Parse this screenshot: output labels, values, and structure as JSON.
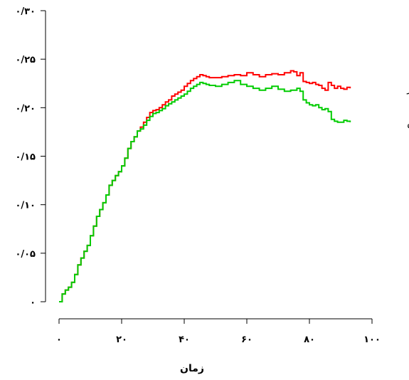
{
  "chart_data": {
    "type": "line",
    "step": true,
    "xlabel": "زمان",
    "ylabel": "",
    "xlim": [
      0,
      100
    ],
    "ylim": [
      0,
      0.3
    ],
    "x_ticks": [
      {
        "value": 0,
        "label": "۰"
      },
      {
        "value": 20,
        "label": "۲۰"
      },
      {
        "value": 40,
        "label": "۴۰"
      },
      {
        "value": 60,
        "label": "۶۰"
      },
      {
        "value": 80,
        "label": "۸۰"
      },
      {
        "value": 100,
        "label": "۱۰۰"
      }
    ],
    "y_ticks": [
      {
        "value": 0,
        "label": "۰"
      },
      {
        "value": 0.05,
        "label": "۰/۰۵"
      },
      {
        "value": 0.1,
        "label": "۰/۱۰"
      },
      {
        "value": 0.15,
        "label": "۰/۱۵"
      },
      {
        "value": 0.2,
        "label": "۰/۲۰"
      },
      {
        "value": 0.25,
        "label": "۰/۲۵"
      },
      {
        "value": 0.3,
        "label": "۰/۳۰"
      }
    ],
    "series": [
      {
        "name": "کاپلان مایر",
        "color": "#ff0000",
        "x": [
          0,
          1,
          2,
          3,
          4,
          5,
          6,
          7,
          8,
          9,
          10,
          11,
          12,
          13,
          14,
          15,
          16,
          17,
          18,
          19,
          20,
          21,
          22,
          23,
          24,
          25,
          26,
          27,
          28,
          29,
          30,
          31,
          32,
          33,
          34,
          35,
          36,
          37,
          38,
          39,
          40,
          41,
          42,
          43,
          44,
          45,
          46,
          47,
          48,
          50,
          52,
          54,
          56,
          58,
          60,
          62,
          64,
          66,
          68,
          70,
          72,
          74,
          75,
          76,
          77,
          78,
          79,
          80,
          81,
          82,
          83,
          84,
          85,
          86,
          87,
          88,
          89,
          90,
          91,
          92,
          93
        ],
        "y": [
          0,
          0.008,
          0.012,
          0.015,
          0.02,
          0.028,
          0.038,
          0.045,
          0.052,
          0.058,
          0.068,
          0.078,
          0.088,
          0.095,
          0.102,
          0.11,
          0.12,
          0.125,
          0.13,
          0.134,
          0.14,
          0.148,
          0.158,
          0.165,
          0.17,
          0.176,
          0.18,
          0.185,
          0.19,
          0.195,
          0.197,
          0.198,
          0.2,
          0.203,
          0.206,
          0.208,
          0.212,
          0.214,
          0.216,
          0.218,
          0.222,
          0.225,
          0.228,
          0.23,
          0.232,
          0.234,
          0.233,
          0.232,
          0.231,
          0.231,
          0.232,
          0.233,
          0.234,
          0.233,
          0.236,
          0.234,
          0.232,
          0.234,
          0.235,
          0.234,
          0.236,
          0.238,
          0.237,
          0.233,
          0.236,
          0.227,
          0.226,
          0.225,
          0.226,
          0.224,
          0.223,
          0.22,
          0.218,
          0.226,
          0.223,
          0.22,
          0.222,
          0.22,
          0.219,
          0.221,
          0.22
        ]
      },
      {
        "name": "کاکس",
        "color": "#00cc00",
        "x": [
          0,
          1,
          2,
          3,
          4,
          5,
          6,
          7,
          8,
          9,
          10,
          11,
          12,
          13,
          14,
          15,
          16,
          17,
          18,
          19,
          20,
          21,
          22,
          23,
          24,
          25,
          26,
          27,
          28,
          29,
          30,
          31,
          32,
          33,
          34,
          35,
          36,
          37,
          38,
          39,
          40,
          41,
          42,
          43,
          44,
          45,
          46,
          47,
          48,
          50,
          52,
          54,
          56,
          58,
          60,
          62,
          64,
          66,
          68,
          70,
          72,
          74,
          76,
          77,
          78,
          79,
          80,
          81,
          82,
          83,
          84,
          85,
          86,
          87,
          88,
          89,
          90,
          91,
          92,
          93
        ],
        "y": [
          0,
          0.008,
          0.012,
          0.015,
          0.02,
          0.028,
          0.038,
          0.045,
          0.052,
          0.058,
          0.068,
          0.078,
          0.088,
          0.095,
          0.102,
          0.11,
          0.12,
          0.125,
          0.13,
          0.134,
          0.14,
          0.148,
          0.158,
          0.165,
          0.17,
          0.176,
          0.178,
          0.182,
          0.187,
          0.191,
          0.194,
          0.195,
          0.197,
          0.199,
          0.202,
          0.204,
          0.206,
          0.208,
          0.21,
          0.212,
          0.214,
          0.217,
          0.22,
          0.222,
          0.224,
          0.226,
          0.225,
          0.224,
          0.223,
          0.222,
          0.224,
          0.226,
          0.228,
          0.224,
          0.222,
          0.22,
          0.218,
          0.22,
          0.222,
          0.219,
          0.217,
          0.218,
          0.22,
          0.217,
          0.208,
          0.205,
          0.203,
          0.202,
          0.203,
          0.2,
          0.198,
          0.199,
          0.196,
          0.188,
          0.186,
          0.185,
          0.185,
          0.187,
          0.186,
          0.185
        ]
      }
    ]
  },
  "colors": {
    "axis": "#000000",
    "background": "#ffffff"
  }
}
